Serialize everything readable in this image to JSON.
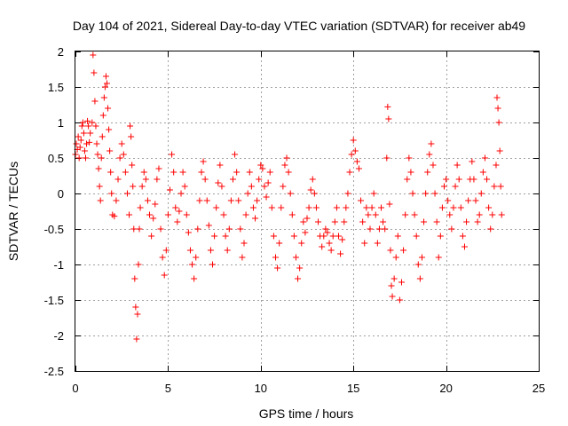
{
  "chart_data": {
    "type": "scatter",
    "title": "Day 104 of 2021, Sidereal Day-to-day VTEC variation (SDTVAR) for receiver ab49",
    "xlabel": "GPS time / hours",
    "ylabel": "SDTVAR / TECUs",
    "xlim": [
      0,
      25
    ],
    "ylim": [
      -2.5,
      2
    ],
    "xticks": [
      0,
      5,
      10,
      15,
      20,
      25
    ],
    "xtick_labels": [
      "0",
      "5",
      "10",
      "15",
      "20",
      "25"
    ],
    "yticks": [
      -2.5,
      -2,
      -1.5,
      -1,
      -0.5,
      0,
      0.5,
      1,
      1.5,
      2
    ],
    "ytick_labels": [
      "-2.5",
      "-2",
      "-1.5",
      "-1",
      "-0.5",
      "0",
      "0.5",
      "1",
      "1.5",
      "2"
    ],
    "grid": true,
    "marker": "+",
    "color": "#ff0000",
    "series": [
      {
        "name": "ab49",
        "points": [
          [
            0.0,
            0.55
          ],
          [
            0.05,
            0.7
          ],
          [
            0.1,
            0.62
          ],
          [
            0.15,
            0.8
          ],
          [
            0.2,
            0.5
          ],
          [
            0.25,
            0.65
          ],
          [
            0.3,
            0.75
          ],
          [
            0.35,
            0.95
          ],
          [
            0.4,
            1.0
          ],
          [
            0.45,
            0.85
          ],
          [
            0.5,
            0.6
          ],
          [
            0.55,
            0.5
          ],
          [
            0.6,
            0.7
          ],
          [
            0.65,
            1.02
          ],
          [
            0.7,
            0.95
          ],
          [
            0.75,
            0.72
          ],
          [
            0.8,
            0.85
          ],
          [
            0.9,
            1.0
          ],
          [
            0.95,
            1.95
          ],
          [
            1.0,
            1.7
          ],
          [
            1.05,
            1.3
          ],
          [
            1.1,
            0.95
          ],
          [
            1.15,
            0.7
          ],
          [
            1.2,
            0.55
          ],
          [
            1.25,
            0.35
          ],
          [
            1.3,
            0.1
          ],
          [
            1.35,
            -0.1
          ],
          [
            1.4,
            0.5
          ],
          [
            1.45,
            0.8
          ],
          [
            1.5,
            1.1
          ],
          [
            1.55,
            1.35
          ],
          [
            1.6,
            1.5
          ],
          [
            1.65,
            1.65
          ],
          [
            1.7,
            1.55
          ],
          [
            1.75,
            1.2
          ],
          [
            1.8,
            0.9
          ],
          [
            1.85,
            0.6
          ],
          [
            1.9,
            0.3
          ],
          [
            1.95,
            0.0
          ],
          [
            2.0,
            -0.3
          ],
          [
            2.1,
            -0.32
          ],
          [
            2.2,
            -0.1
          ],
          [
            2.3,
            0.2
          ],
          [
            2.4,
            0.5
          ],
          [
            2.5,
            0.7
          ],
          [
            2.6,
            0.55
          ],
          [
            2.7,
            0.3
          ],
          [
            2.8,
            0.0
          ],
          [
            2.9,
            -0.3
          ],
          [
            2.95,
            0.95
          ],
          [
            3.0,
            0.8
          ],
          [
            3.05,
            0.4
          ],
          [
            3.1,
            0.1
          ],
          [
            3.15,
            -0.5
          ],
          [
            3.2,
            -1.2
          ],
          [
            3.25,
            -1.6
          ],
          [
            3.3,
            -2.05
          ],
          [
            3.35,
            -1.7
          ],
          [
            3.4,
            -1.0
          ],
          [
            3.45,
            -0.5
          ],
          [
            3.5,
            -0.2
          ],
          [
            3.6,
            0.1
          ],
          [
            3.7,
            0.3
          ],
          [
            3.8,
            0.2
          ],
          [
            3.9,
            -0.1
          ],
          [
            4.0,
            -0.3
          ],
          [
            4.1,
            -0.6
          ],
          [
            4.2,
            -0.35
          ],
          [
            4.3,
            -0.15
          ],
          [
            4.4,
            0.2
          ],
          [
            4.5,
            0.35
          ],
          [
            4.6,
            -0.5
          ],
          [
            4.7,
            -0.9
          ],
          [
            4.8,
            -1.15
          ],
          [
            4.9,
            -0.8
          ],
          [
            5.0,
            -0.3
          ],
          [
            5.1,
            0.05
          ],
          [
            5.2,
            0.55
          ],
          [
            5.3,
            0.3
          ],
          [
            5.4,
            -0.2
          ],
          [
            5.5,
            -0.4
          ],
          [
            5.6,
            -0.25
          ],
          [
            5.7,
            0.0
          ],
          [
            5.8,
            0.3
          ],
          [
            5.9,
            0.1
          ],
          [
            6.0,
            -0.3
          ],
          [
            6.1,
            -0.55
          ],
          [
            6.2,
            -0.8
          ],
          [
            6.3,
            -1.0
          ],
          [
            6.4,
            -1.2
          ],
          [
            6.5,
            -0.9
          ],
          [
            6.6,
            -0.5
          ],
          [
            6.7,
            -0.1
          ],
          [
            6.8,
            0.3
          ],
          [
            6.9,
            0.45
          ],
          [
            7.0,
            0.2
          ],
          [
            7.1,
            -0.1
          ],
          [
            7.2,
            -0.45
          ],
          [
            7.3,
            -0.8
          ],
          [
            7.4,
            -1.0
          ],
          [
            7.5,
            -0.6
          ],
          [
            7.6,
            -0.2
          ],
          [
            7.7,
            0.15
          ],
          [
            7.8,
            0.4
          ],
          [
            7.9,
            0.1
          ],
          [
            8.0,
            -0.3
          ],
          [
            8.1,
            -0.6
          ],
          [
            8.2,
            -0.8
          ],
          [
            8.3,
            -0.5
          ],
          [
            8.4,
            -0.1
          ],
          [
            8.5,
            0.2
          ],
          [
            8.6,
            0.55
          ],
          [
            8.7,
            0.3
          ],
          [
            8.8,
            -0.1
          ],
          [
            8.9,
            -0.5
          ],
          [
            9.0,
            -0.9
          ],
          [
            9.1,
            -0.7
          ],
          [
            9.2,
            -0.3
          ],
          [
            9.3,
            0.0
          ],
          [
            9.4,
            0.3
          ],
          [
            9.5,
            0.1
          ],
          [
            9.6,
            -0.2
          ],
          [
            9.7,
            -0.35
          ],
          [
            9.8,
            -0.1
          ],
          [
            9.9,
            0.2
          ],
          [
            10.0,
            0.4
          ],
          [
            10.1,
            0.35
          ],
          [
            10.2,
            0.1
          ],
          [
            10.3,
            -0.05
          ],
          [
            10.4,
            0.15
          ],
          [
            10.5,
            0.3
          ],
          [
            10.6,
            -0.2
          ],
          [
            10.7,
            -0.6
          ],
          [
            10.8,
            -0.9
          ],
          [
            10.9,
            -1.05
          ],
          [
            11.0,
            -0.7
          ],
          [
            11.1,
            -0.2
          ],
          [
            11.2,
            0.1
          ],
          [
            11.3,
            0.4
          ],
          [
            11.4,
            0.5
          ],
          [
            11.5,
            0.3
          ],
          [
            11.6,
            0.0
          ],
          [
            11.7,
            -0.3
          ],
          [
            11.8,
            -0.6
          ],
          [
            11.9,
            -0.9
          ],
          [
            12.0,
            -1.2
          ],
          [
            12.1,
            -1.05
          ],
          [
            12.2,
            -0.7
          ],
          [
            12.3,
            -0.4
          ],
          [
            12.4,
            -0.55
          ],
          [
            12.5,
            -0.35
          ],
          [
            12.6,
            -0.2
          ],
          [
            12.7,
            0.05
          ],
          [
            12.8,
            0.2
          ],
          [
            12.9,
            0.0
          ],
          [
            13.0,
            -0.2
          ],
          [
            13.1,
            -0.4
          ],
          [
            13.2,
            -0.6
          ],
          [
            13.3,
            -0.75
          ],
          [
            13.4,
            -0.6
          ],
          [
            13.5,
            -0.5
          ],
          [
            13.6,
            -0.55
          ],
          [
            13.7,
            -0.7
          ],
          [
            13.8,
            -0.8
          ],
          [
            13.9,
            -0.6
          ],
          [
            14.0,
            -0.4
          ],
          [
            14.1,
            -0.2
          ],
          [
            14.2,
            -0.6
          ],
          [
            14.3,
            -0.85
          ],
          [
            14.4,
            -0.65
          ],
          [
            14.5,
            -0.4
          ],
          [
            14.6,
            -0.2
          ],
          [
            14.7,
            0.0
          ],
          [
            14.8,
            0.3
          ],
          [
            14.9,
            0.55
          ],
          [
            15.0,
            0.75
          ],
          [
            15.1,
            0.6
          ],
          [
            15.2,
            0.45
          ],
          [
            15.3,
            0.35
          ],
          [
            15.4,
            -0.1
          ],
          [
            15.5,
            -0.4
          ],
          [
            15.6,
            -0.7
          ],
          [
            15.7,
            -0.2
          ],
          [
            15.8,
            -0.3
          ],
          [
            15.9,
            -0.5
          ],
          [
            16.0,
            -0.2
          ],
          [
            16.1,
            0.0
          ],
          [
            16.2,
            -0.3
          ],
          [
            16.3,
            -0.7
          ],
          [
            16.4,
            -0.5
          ],
          [
            16.5,
            -0.2
          ],
          [
            16.6,
            -0.4
          ],
          [
            16.7,
            -0.5
          ],
          [
            16.8,
            0.5
          ],
          [
            16.85,
            1.22
          ],
          [
            16.9,
            1.05
          ],
          [
            16.95,
            -0.15
          ],
          [
            17.0,
            -0.8
          ],
          [
            17.05,
            -1.3
          ],
          [
            17.1,
            -1.45
          ],
          [
            17.2,
            -1.2
          ],
          [
            17.3,
            -0.9
          ],
          [
            17.4,
            -0.6
          ],
          [
            17.5,
            -1.5
          ],
          [
            17.6,
            -1.25
          ],
          [
            17.7,
            -0.8
          ],
          [
            17.8,
            -0.3
          ],
          [
            17.9,
            0.2
          ],
          [
            18.0,
            0.5
          ],
          [
            18.1,
            0.3
          ],
          [
            18.2,
            0.0
          ],
          [
            18.3,
            -0.3
          ],
          [
            18.4,
            -0.6
          ],
          [
            18.5,
            -1.0
          ],
          [
            18.6,
            -1.2
          ],
          [
            18.7,
            -0.9
          ],
          [
            18.8,
            -0.4
          ],
          [
            18.9,
            0.0
          ],
          [
            19.0,
            0.3
          ],
          [
            19.1,
            0.55
          ],
          [
            19.2,
            0.7
          ],
          [
            19.3,
            0.4
          ],
          [
            19.4,
            0.0
          ],
          [
            19.5,
            -0.4
          ],
          [
            19.6,
            -0.9
          ],
          [
            19.7,
            -0.6
          ],
          [
            19.8,
            -0.2
          ],
          [
            19.9,
            0.1
          ],
          [
            20.0,
            0.2
          ],
          [
            20.1,
            -0.1
          ],
          [
            20.2,
            -0.3
          ],
          [
            20.3,
            -0.5
          ],
          [
            20.4,
            -0.2
          ],
          [
            20.5,
            0.1
          ],
          [
            20.6,
            0.4
          ],
          [
            20.7,
            0.2
          ],
          [
            20.8,
            -0.2
          ],
          [
            20.9,
            -0.6
          ],
          [
            21.0,
            -0.75
          ],
          [
            21.1,
            -0.4
          ],
          [
            21.2,
            -0.1
          ],
          [
            21.3,
            0.2
          ],
          [
            21.4,
            0.45
          ],
          [
            21.5,
            0.2
          ],
          [
            21.6,
            -0.1
          ],
          [
            21.7,
            -0.4
          ],
          [
            21.8,
            -0.3
          ],
          [
            21.9,
            0.0
          ],
          [
            22.0,
            0.3
          ],
          [
            22.1,
            0.5
          ],
          [
            22.2,
            0.2
          ],
          [
            22.3,
            -0.2
          ],
          [
            22.4,
            -0.5
          ],
          [
            22.5,
            -0.3
          ],
          [
            22.6,
            0.1
          ],
          [
            22.7,
            0.4
          ],
          [
            22.75,
            1.35
          ],
          [
            22.8,
            1.2
          ],
          [
            22.85,
            1.0
          ],
          [
            22.9,
            0.6
          ],
          [
            22.95,
            0.1
          ],
          [
            23.0,
            -0.3
          ]
        ]
      }
    ]
  }
}
